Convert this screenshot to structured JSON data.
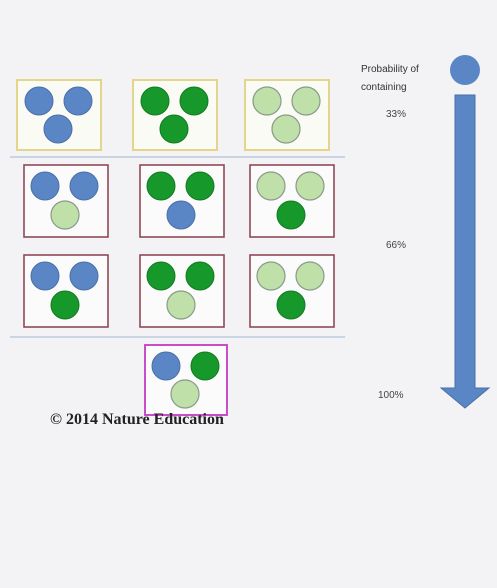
{
  "legend": {
    "title_line1": "Probability of",
    "title_line2": "containing"
  },
  "levels": [
    "33%",
    "66%",
    "100%"
  ],
  "copyright": "© 2014 Nature Education"
}
